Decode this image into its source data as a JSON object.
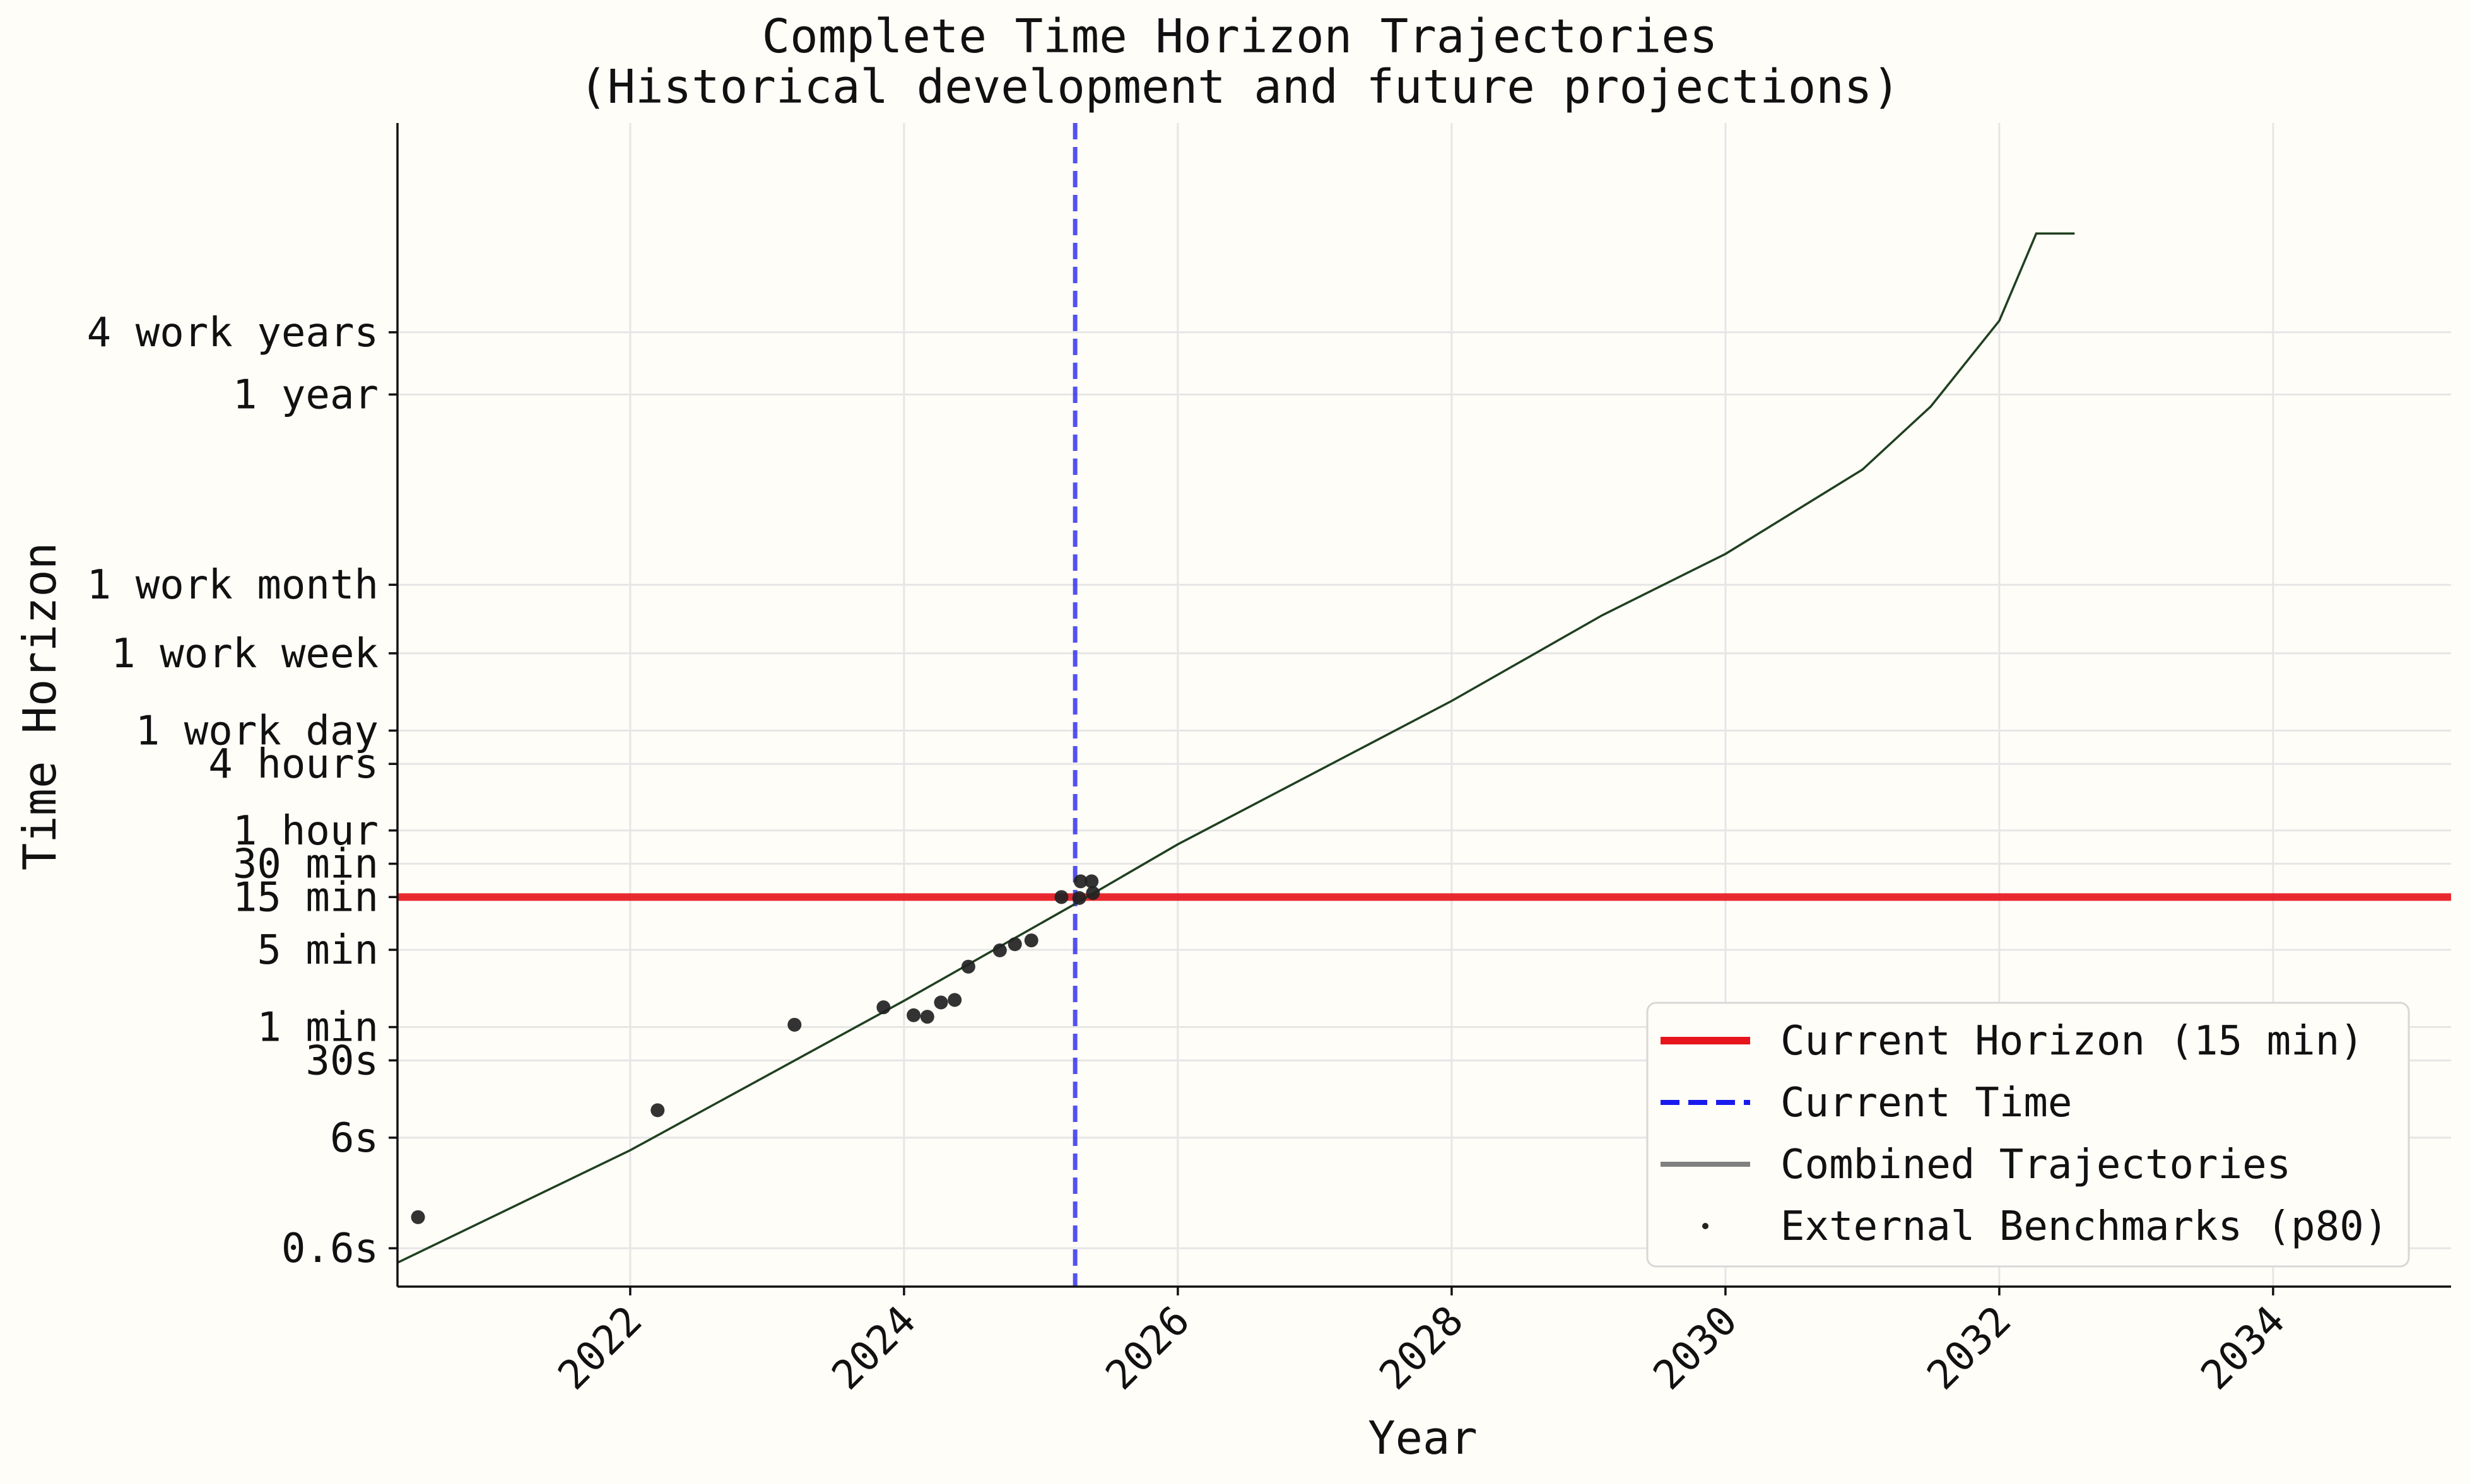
{
  "chart_data": {
    "type": "line",
    "title": "Complete Time Horizon Trajectories",
    "subtitle": "(Historical development and future projections)",
    "xlabel": "Year",
    "ylabel": "Time Horizon",
    "xlim": [
      2020.3,
      2035.3
    ],
    "y_scale": "log",
    "ylim_minutes": [
      0.0045,
      150000000
    ],
    "grid": true,
    "legend_position": "lower-right",
    "x_ticks": [
      {
        "value": 2022,
        "label": "2022"
      },
      {
        "value": 2024,
        "label": "2024"
      },
      {
        "value": 2026,
        "label": "2026"
      },
      {
        "value": 2028,
        "label": "2028"
      },
      {
        "value": 2030,
        "label": "2030"
      },
      {
        "value": 2032,
        "label": "2032"
      },
      {
        "value": 2034,
        "label": "2034"
      }
    ],
    "y_ticks": [
      {
        "minutes": 0.01,
        "label": "0.6s"
      },
      {
        "minutes": 0.1,
        "label": "6s"
      },
      {
        "minutes": 0.5,
        "label": "30s"
      },
      {
        "minutes": 1,
        "label": "1 min"
      },
      {
        "minutes": 5,
        "label": "5 min"
      },
      {
        "minutes": 15,
        "label": "15 min"
      },
      {
        "minutes": 30,
        "label": "30 min"
      },
      {
        "minutes": 60,
        "label": "1 hour"
      },
      {
        "minutes": 240,
        "label": "4 hours"
      },
      {
        "minutes": 480,
        "label": "1 work day"
      },
      {
        "minutes": 2400,
        "label": "1 work week"
      },
      {
        "minutes": 10000,
        "label": "1 work month"
      },
      {
        "minutes": 525600,
        "label": "1 year"
      },
      {
        "minutes": 1920000,
        "label": "4 work years"
      }
    ],
    "series": [
      {
        "name": "Current Horizon (15 min)",
        "kind": "hline",
        "y_minutes": 15,
        "color": "#e8141c",
        "style": "solid"
      },
      {
        "name": "Current Time",
        "kind": "vline",
        "x": 2025.25,
        "color": "#1a1aee",
        "style": "dashed"
      },
      {
        "name": "Combined Trajectories",
        "kind": "line",
        "color": "#1f4020",
        "legend_color": "#808080",
        "points": [
          {
            "x": 2020.3,
            "y_minutes": 0.0074
          },
          {
            "x": 2022.0,
            "y_minutes": 0.077
          },
          {
            "x": 2024.0,
            "y_minutes": 1.73
          },
          {
            "x": 2025.25,
            "y_minutes": 13
          },
          {
            "x": 2026.0,
            "y_minutes": 45
          },
          {
            "x": 2028.0,
            "y_minutes": 890
          },
          {
            "x": 2029.1,
            "y_minutes": 5300
          },
          {
            "x": 2030.0,
            "y_minutes": 19000
          },
          {
            "x": 2031.0,
            "y_minutes": 110000
          },
          {
            "x": 2031.5,
            "y_minutes": 410000
          },
          {
            "x": 2032.0,
            "y_minutes": 2440000
          },
          {
            "x": 2032.27,
            "y_minutes": 15000000
          },
          {
            "x": 2032.55,
            "y_minutes": 15000000
          }
        ]
      },
      {
        "name": "External Benchmarks (p80)",
        "kind": "scatter",
        "color": "#222222",
        "points": [
          {
            "x": 2020.45,
            "y_minutes": 0.0191
          },
          {
            "x": 2022.2,
            "y_minutes": 0.177
          },
          {
            "x": 2023.2,
            "y_minutes": 1.05
          },
          {
            "x": 2023.85,
            "y_minutes": 1.51
          },
          {
            "x": 2024.07,
            "y_minutes": 1.28
          },
          {
            "x": 2024.17,
            "y_minutes": 1.24
          },
          {
            "x": 2024.27,
            "y_minutes": 1.67
          },
          {
            "x": 2024.37,
            "y_minutes": 1.76
          },
          {
            "x": 2024.47,
            "y_minutes": 3.52
          },
          {
            "x": 2024.7,
            "y_minutes": 4.94
          },
          {
            "x": 2024.81,
            "y_minutes": 5.62
          },
          {
            "x": 2024.93,
            "y_minutes": 6.08
          },
          {
            "x": 2025.15,
            "y_minutes": 15.0
          },
          {
            "x": 2025.28,
            "y_minutes": 14.7
          },
          {
            "x": 2025.29,
            "y_minutes": 20.8
          },
          {
            "x": 2025.37,
            "y_minutes": 20.8
          },
          {
            "x": 2025.38,
            "y_minutes": 16.3
          }
        ]
      }
    ]
  }
}
